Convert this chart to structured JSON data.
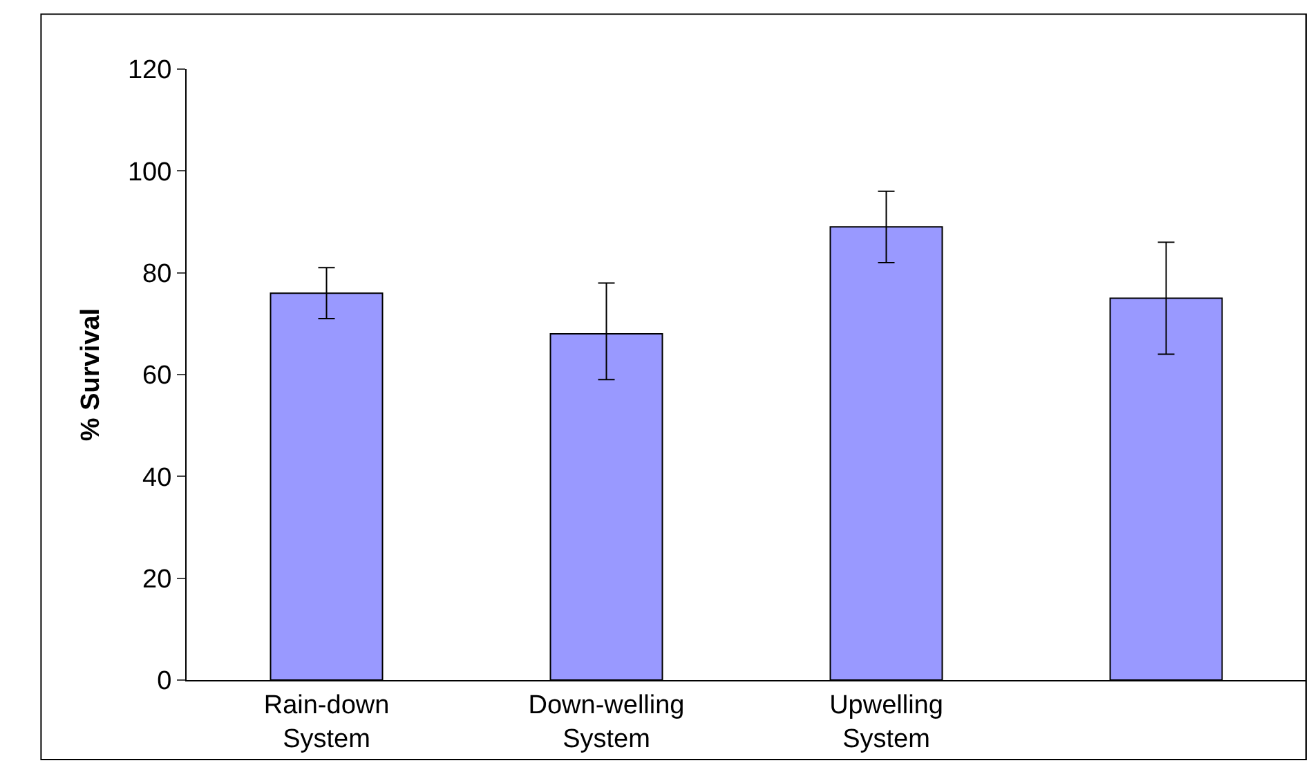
{
  "chart_data": {
    "type": "bar",
    "ylabel": "% Survival",
    "categories": [
      "Rain-down\nSystem",
      "Down-welling\nSystem",
      "Upwelling\nSystem",
      null
    ],
    "values": [
      76,
      68,
      89,
      75
    ],
    "color": "#9999ff",
    "errors": [
      [
        71,
        81
      ],
      [
        59,
        78
      ],
      [
        82,
        96
      ],
      [
        64,
        86
      ]
    ],
    "ylim": [
      0,
      120
    ],
    "yticks": [
      0,
      20,
      40,
      60,
      80,
      100,
      120
    ]
  }
}
